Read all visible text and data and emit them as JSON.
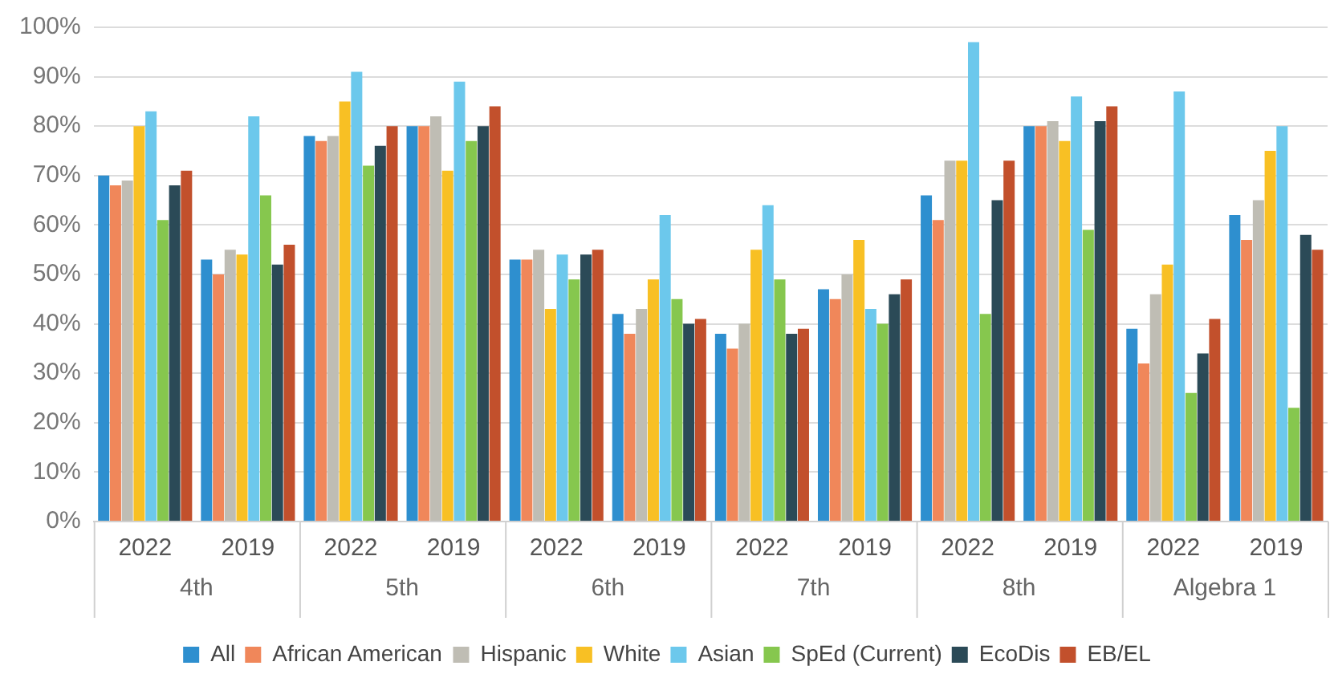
{
  "chart_data": {
    "type": "bar",
    "categories": [
      "2022",
      "2019",
      "2022",
      "2019",
      "2022",
      "2019",
      "2022",
      "2019",
      "2022",
      "2019",
      "2022",
      "2019"
    ],
    "annotations": [
      "4th",
      "5th",
      "6th",
      "7th",
      "8th",
      "Algebra 1"
    ],
    "series": [
      {
        "name": "All",
        "color": "#2e8fcf",
        "values": [
          70,
          53,
          78,
          80,
          53,
          42,
          38,
          47,
          66,
          80,
          39,
          62
        ]
      },
      {
        "name": "African American",
        "color": "#f0875a",
        "values": [
          68,
          50,
          77,
          80,
          53,
          38,
          35,
          45,
          61,
          80,
          32,
          57
        ]
      },
      {
        "name": "Hispanic",
        "color": "#bfbdb4",
        "values": [
          69,
          55,
          78,
          82,
          55,
          43,
          40,
          50,
          73,
          81,
          46,
          65
        ]
      },
      {
        "name": "White",
        "color": "#f8c024",
        "values": [
          80,
          54,
          85,
          71,
          43,
          49,
          55,
          57,
          73,
          77,
          52,
          75
        ]
      },
      {
        "name": "Asian",
        "color": "#6cc8ec",
        "values": [
          83,
          82,
          91,
          89,
          54,
          62,
          64,
          43,
          97,
          86,
          87,
          80
        ]
      },
      {
        "name": "SpEd (Current)",
        "color": "#86c74e",
        "values": [
          61,
          66,
          72,
          77,
          49,
          45,
          49,
          40,
          42,
          59,
          26,
          23
        ]
      },
      {
        "name": "EcoDis",
        "color": "#2b4a57",
        "values": [
          68,
          52,
          76,
          80,
          54,
          40,
          38,
          46,
          65,
          81,
          34,
          58
        ]
      },
      {
        "name": "EB/EL",
        "color": "#c2502c",
        "values": [
          71,
          56,
          80,
          84,
          55,
          41,
          39,
          49,
          73,
          84,
          41,
          55
        ]
      }
    ],
    "ylim": [
      0,
      100
    ],
    "yticks": [
      {
        "value": 0,
        "label": "0%"
      },
      {
        "value": 10,
        "label": "10%"
      },
      {
        "value": 20,
        "label": "20%"
      },
      {
        "value": 30,
        "label": "30%"
      },
      {
        "value": 40,
        "label": "40%"
      },
      {
        "value": 50,
        "label": "50%"
      },
      {
        "value": 60,
        "label": "60%"
      },
      {
        "value": 70,
        "label": "70%"
      },
      {
        "value": 80,
        "label": "80%"
      },
      {
        "value": 90,
        "label": "90%"
      },
      {
        "value": 100,
        "label": "100%"
      }
    ],
    "grid": "y",
    "legend": "bottom"
  }
}
